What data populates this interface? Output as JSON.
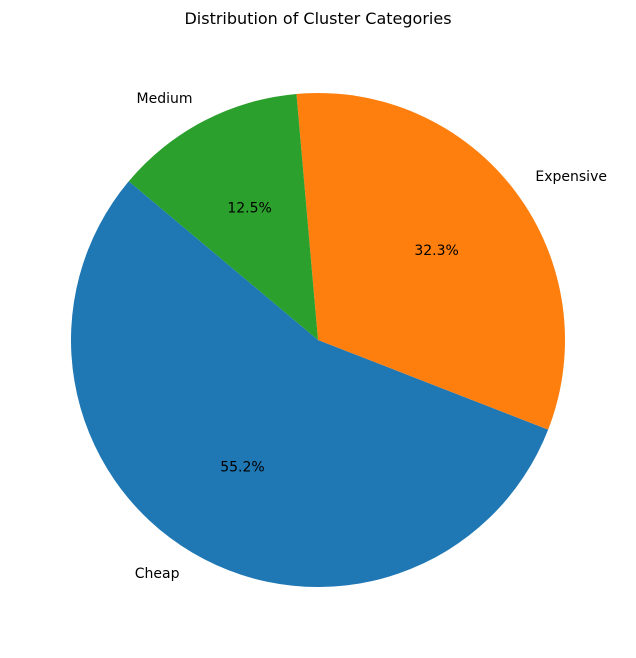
{
  "chart_data": {
    "type": "pie",
    "title": "Distribution of Cluster Categories",
    "labels": [
      "Cheap",
      "Expensive",
      "Medium"
    ],
    "values": [
      55.2,
      32.3,
      12.5
    ],
    "percent_labels": [
      "55.2%",
      "32.3%",
      "12.5%"
    ],
    "colors": [
      "#1f77b4",
      "#ff7f0e",
      "#2ca02c"
    ],
    "start_angle_deg": 140,
    "direction": "counterclockwise"
  }
}
